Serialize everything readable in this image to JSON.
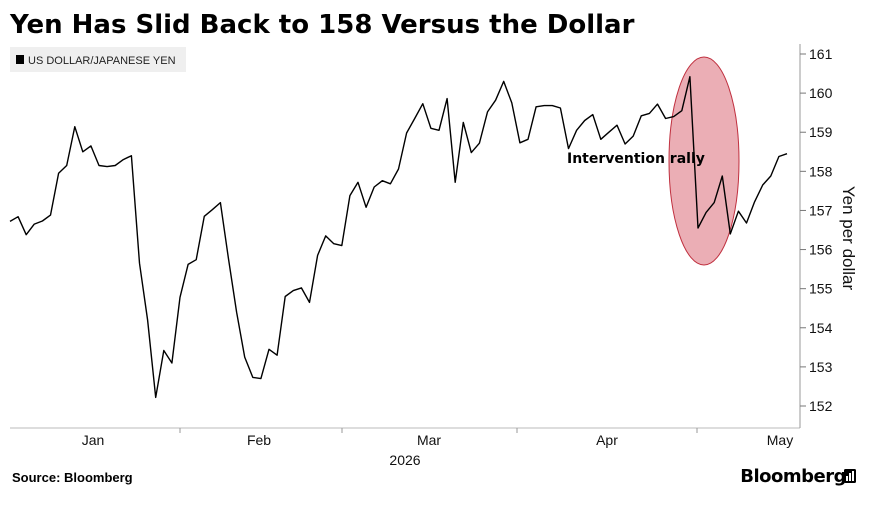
{
  "title": "Yen Has Slid Back to 158 Versus the Dollar",
  "source": "Source: Bloomberg",
  "brand": "Bloomberg",
  "brand_icon": "chart-icon",
  "chart_data": {
    "type": "line",
    "title": "Yen Has Slid Back to 158 Versus the Dollar",
    "xlabel": "",
    "ylabel": "Yen per dollar",
    "ylim": [
      151.5,
      161.3
    ],
    "yticks": [
      152,
      153,
      154,
      155,
      156,
      157,
      158,
      159,
      160,
      161
    ],
    "y_axis_side": "right",
    "xticks": [
      "Jan",
      "Feb",
      "Mar",
      "Apr",
      "May"
    ],
    "x_year_label": "2026",
    "grid": false,
    "legend": "top-left",
    "line_color": "#000000",
    "highlight_color": "#e8a0a8",
    "annotation": "Intervention rally",
    "series": [
      {
        "name": "US DOLLAR/JAPANESE YEN",
        "values": [
          156.72,
          156.84,
          156.38,
          156.65,
          156.73,
          156.88,
          157.95,
          158.15,
          159.14,
          158.5,
          158.65,
          158.15,
          158.12,
          158.15,
          158.3,
          158.4,
          155.65,
          154.2,
          152.22,
          153.42,
          153.1,
          154.78,
          155.62,
          155.74,
          156.85,
          157.02,
          157.2,
          155.76,
          154.4,
          153.25,
          152.73,
          152.7,
          153.45,
          153.3,
          154.8,
          154.95,
          155.02,
          154.65,
          155.85,
          156.35,
          156.15,
          156.1,
          157.38,
          157.72,
          157.08,
          157.6,
          157.76,
          157.68,
          158.06,
          158.98,
          159.35,
          159.73,
          159.1,
          159.05,
          159.86,
          157.72,
          159.25,
          158.48,
          158.72,
          159.52,
          159.82,
          160.3,
          159.75,
          158.73,
          158.82,
          159.65,
          159.68,
          159.68,
          159.62,
          158.58,
          159.05,
          159.3,
          159.45,
          158.82,
          159.0,
          159.18,
          158.7,
          158.9,
          159.42,
          159.48,
          159.72,
          159.35,
          159.4,
          159.55,
          160.42,
          156.55,
          156.95,
          157.2,
          157.88,
          156.4,
          156.98,
          156.68,
          157.22,
          157.65,
          157.88,
          158.38,
          158.45
        ]
      }
    ]
  }
}
